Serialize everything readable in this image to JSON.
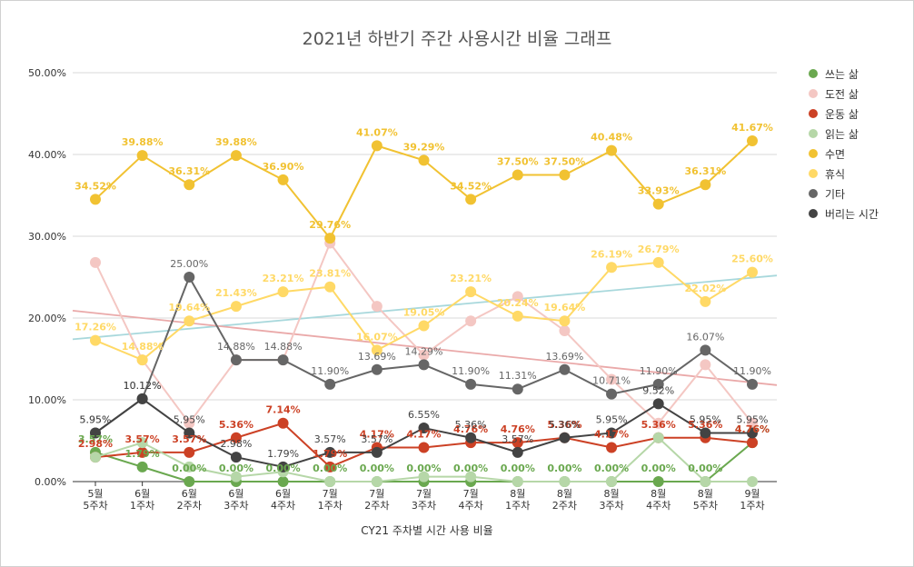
{
  "chart_data": {
    "type": "line",
    "title": "2021년 하반기 주간 사용시간 비율 그래프",
    "xlabel": "CY21 주차별 시간 사용 비율",
    "ylabel": "",
    "ylim": [
      0,
      50
    ],
    "y_ticks": [
      "0.00%",
      "10.00%",
      "20.00%",
      "30.00%",
      "40.00%",
      "50.00%"
    ],
    "grid": true,
    "legend_position": "right",
    "categories": [
      [
        "5월",
        "5주차"
      ],
      [
        "6월",
        "1주차"
      ],
      [
        "6월",
        "2주차"
      ],
      [
        "6월",
        "3주차"
      ],
      [
        "6월",
        "4주차"
      ],
      [
        "7월",
        "1주차"
      ],
      [
        "7월",
        "2주차"
      ],
      [
        "7월",
        "3주차"
      ],
      [
        "7월",
        "4주차"
      ],
      [
        "8월",
        "1주차"
      ],
      [
        "8월",
        "2주차"
      ],
      [
        "8월",
        "3주차"
      ],
      [
        "8월",
        "4주차"
      ],
      [
        "8월",
        "5주차"
      ],
      [
        "9월",
        "1주차"
      ]
    ],
    "series": [
      {
        "name": "쓰는 삶",
        "color": "#6aa84f",
        "labels": true,
        "values": [
          3.57,
          1.79,
          0.0,
          0.0,
          0.0,
          0.0,
          0.0,
          0.0,
          0.0,
          0.0,
          0.0,
          0.0,
          0.0,
          0.0,
          4.76
        ]
      },
      {
        "name": "도전 삶",
        "color": "#f4c7c3",
        "labels": false,
        "values": [
          26.79,
          14.88,
          7.14,
          14.88,
          14.88,
          29.17,
          21.43,
          15.48,
          19.64,
          22.62,
          18.45,
          12.5,
          7.14,
          14.29,
          7.14
        ]
      },
      {
        "name": "운동 삶",
        "color": "#cc4125",
        "labels": true,
        "values": [
          2.98,
          3.57,
          3.57,
          5.36,
          7.14,
          1.79,
          4.17,
          4.17,
          4.76,
          4.76,
          5.36,
          4.17,
          5.36,
          5.36,
          4.76
        ]
      },
      {
        "name": "읽는 삶",
        "color": "#b6d7a8",
        "labels": false,
        "values": [
          2.98,
          4.76,
          1.79,
          0.6,
          1.19,
          0.0,
          0.0,
          0.6,
          0.6,
          0.0,
          0.0,
          0.0,
          5.36,
          0.0,
          0.0
        ]
      },
      {
        "name": "수면",
        "color": "#f1c232",
        "labels": true,
        "values": [
          34.52,
          39.88,
          36.31,
          39.88,
          36.9,
          29.76,
          41.07,
          39.29,
          34.52,
          37.5,
          37.5,
          40.48,
          33.93,
          36.31,
          41.67
        ]
      },
      {
        "name": "휴식",
        "color": "#ffd966",
        "labels": true,
        "values": [
          17.26,
          14.88,
          19.64,
          21.43,
          23.21,
          23.81,
          16.07,
          19.05,
          23.21,
          20.24,
          19.64,
          26.19,
          26.79,
          22.02,
          25.6
        ]
      },
      {
        "name": "기타",
        "color": "#666666",
        "labels": true,
        "values": [
          5.95,
          10.12,
          25.0,
          14.88,
          14.88,
          11.9,
          13.69,
          14.29,
          11.9,
          11.31,
          13.69,
          10.71,
          11.9,
          16.07,
          11.9
        ]
      },
      {
        "name": "버리는 시간",
        "color": "#434343",
        "labels": true,
        "values": [
          5.95,
          10.12,
          5.95,
          2.98,
          1.79,
          3.57,
          3.57,
          6.55,
          5.36,
          3.57,
          5.36,
          5.95,
          9.52,
          5.95,
          5.95
        ]
      }
    ],
    "trendlines": [
      {
        "color": "#a8d8dc",
        "from": 17.4,
        "to": 25.2
      },
      {
        "color": "#eaa9a9",
        "from": 20.9,
        "to": 11.8
      }
    ]
  }
}
